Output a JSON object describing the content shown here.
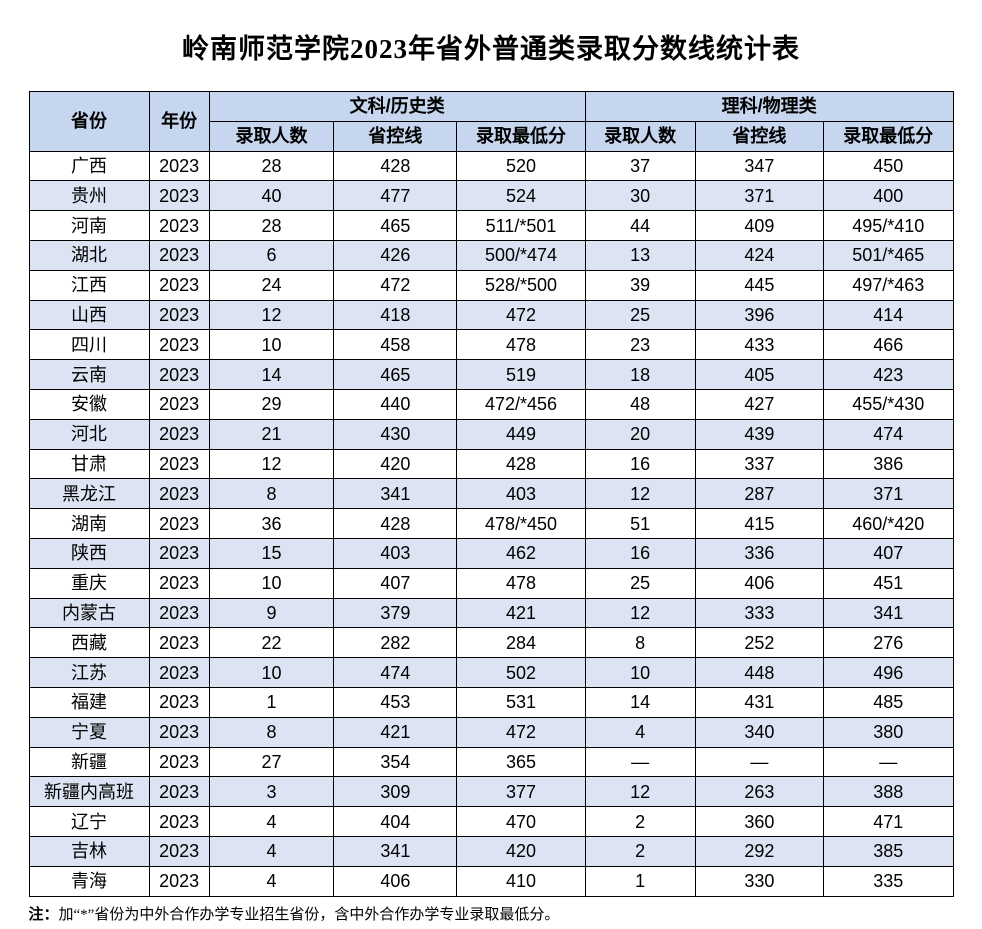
{
  "title": "岭南师范学院2023年省外普通类录取分数线统计表",
  "table": {
    "header": {
      "province": "省份",
      "year": "年份",
      "groups": [
        {
          "label": "文科/历史类",
          "sub": [
            "录取人数",
            "省控线",
            "录取最低分"
          ]
        },
        {
          "label": "理科/物理类",
          "sub": [
            "录取人数",
            "省控线",
            "录取最低分"
          ]
        }
      ]
    },
    "rows": [
      [
        "广西",
        "2023",
        "28",
        "428",
        "520",
        "37",
        "347",
        "450"
      ],
      [
        "贵州",
        "2023",
        "40",
        "477",
        "524",
        "30",
        "371",
        "400"
      ],
      [
        "河南",
        "2023",
        "28",
        "465",
        "511/*501",
        "44",
        "409",
        "495/*410"
      ],
      [
        "湖北",
        "2023",
        "6",
        "426",
        "500/*474",
        "13",
        "424",
        "501/*465"
      ],
      [
        "江西",
        "2023",
        "24",
        "472",
        "528/*500",
        "39",
        "445",
        "497/*463"
      ],
      [
        "山西",
        "2023",
        "12",
        "418",
        "472",
        "25",
        "396",
        "414"
      ],
      [
        "四川",
        "2023",
        "10",
        "458",
        "478",
        "23",
        "433",
        "466"
      ],
      [
        "云南",
        "2023",
        "14",
        "465",
        "519",
        "18",
        "405",
        "423"
      ],
      [
        "安徽",
        "2023",
        "29",
        "440",
        "472/*456",
        "48",
        "427",
        "455/*430"
      ],
      [
        "河北",
        "2023",
        "21",
        "430",
        "449",
        "20",
        "439",
        "474"
      ],
      [
        "甘肃",
        "2023",
        "12",
        "420",
        "428",
        "16",
        "337",
        "386"
      ],
      [
        "黑龙江",
        "2023",
        "8",
        "341",
        "403",
        "12",
        "287",
        "371"
      ],
      [
        "湖南",
        "2023",
        "36",
        "428",
        "478/*450",
        "51",
        "415",
        "460/*420"
      ],
      [
        "陕西",
        "2023",
        "15",
        "403",
        "462",
        "16",
        "336",
        "407"
      ],
      [
        "重庆",
        "2023",
        "10",
        "407",
        "478",
        "25",
        "406",
        "451"
      ],
      [
        "内蒙古",
        "2023",
        "9",
        "379",
        "421",
        "12",
        "333",
        "341"
      ],
      [
        "西藏",
        "2023",
        "22",
        "282",
        "284",
        "8",
        "252",
        "276"
      ],
      [
        "江苏",
        "2023",
        "10",
        "474",
        "502",
        "10",
        "448",
        "496"
      ],
      [
        "福建",
        "2023",
        "1",
        "453",
        "531",
        "14",
        "431",
        "485"
      ],
      [
        "宁夏",
        "2023",
        "8",
        "421",
        "472",
        "4",
        "340",
        "380"
      ],
      [
        "新疆",
        "2023",
        "27",
        "354",
        "365",
        "—",
        "—",
        "—"
      ],
      [
        "新疆内高班",
        "2023",
        "3",
        "309",
        "377",
        "12",
        "263",
        "388"
      ],
      [
        "辽宁",
        "2023",
        "4",
        "404",
        "470",
        "2",
        "360",
        "471"
      ],
      [
        "吉林",
        "2023",
        "4",
        "341",
        "420",
        "2",
        "292",
        "385"
      ],
      [
        "青海",
        "2023",
        "4",
        "406",
        "410",
        "1",
        "330",
        "335"
      ]
    ]
  },
  "note": {
    "prefix": "注：",
    "text": "加“*”省份为中外合作办学专业招生省份，含中外合作办学专业录取最低分。"
  },
  "colors": {
    "header_bg": "#c5d6ee",
    "band_bg": "#dce3f2",
    "border": "#000000",
    "text": "#000000",
    "background": "#ffffff"
  }
}
